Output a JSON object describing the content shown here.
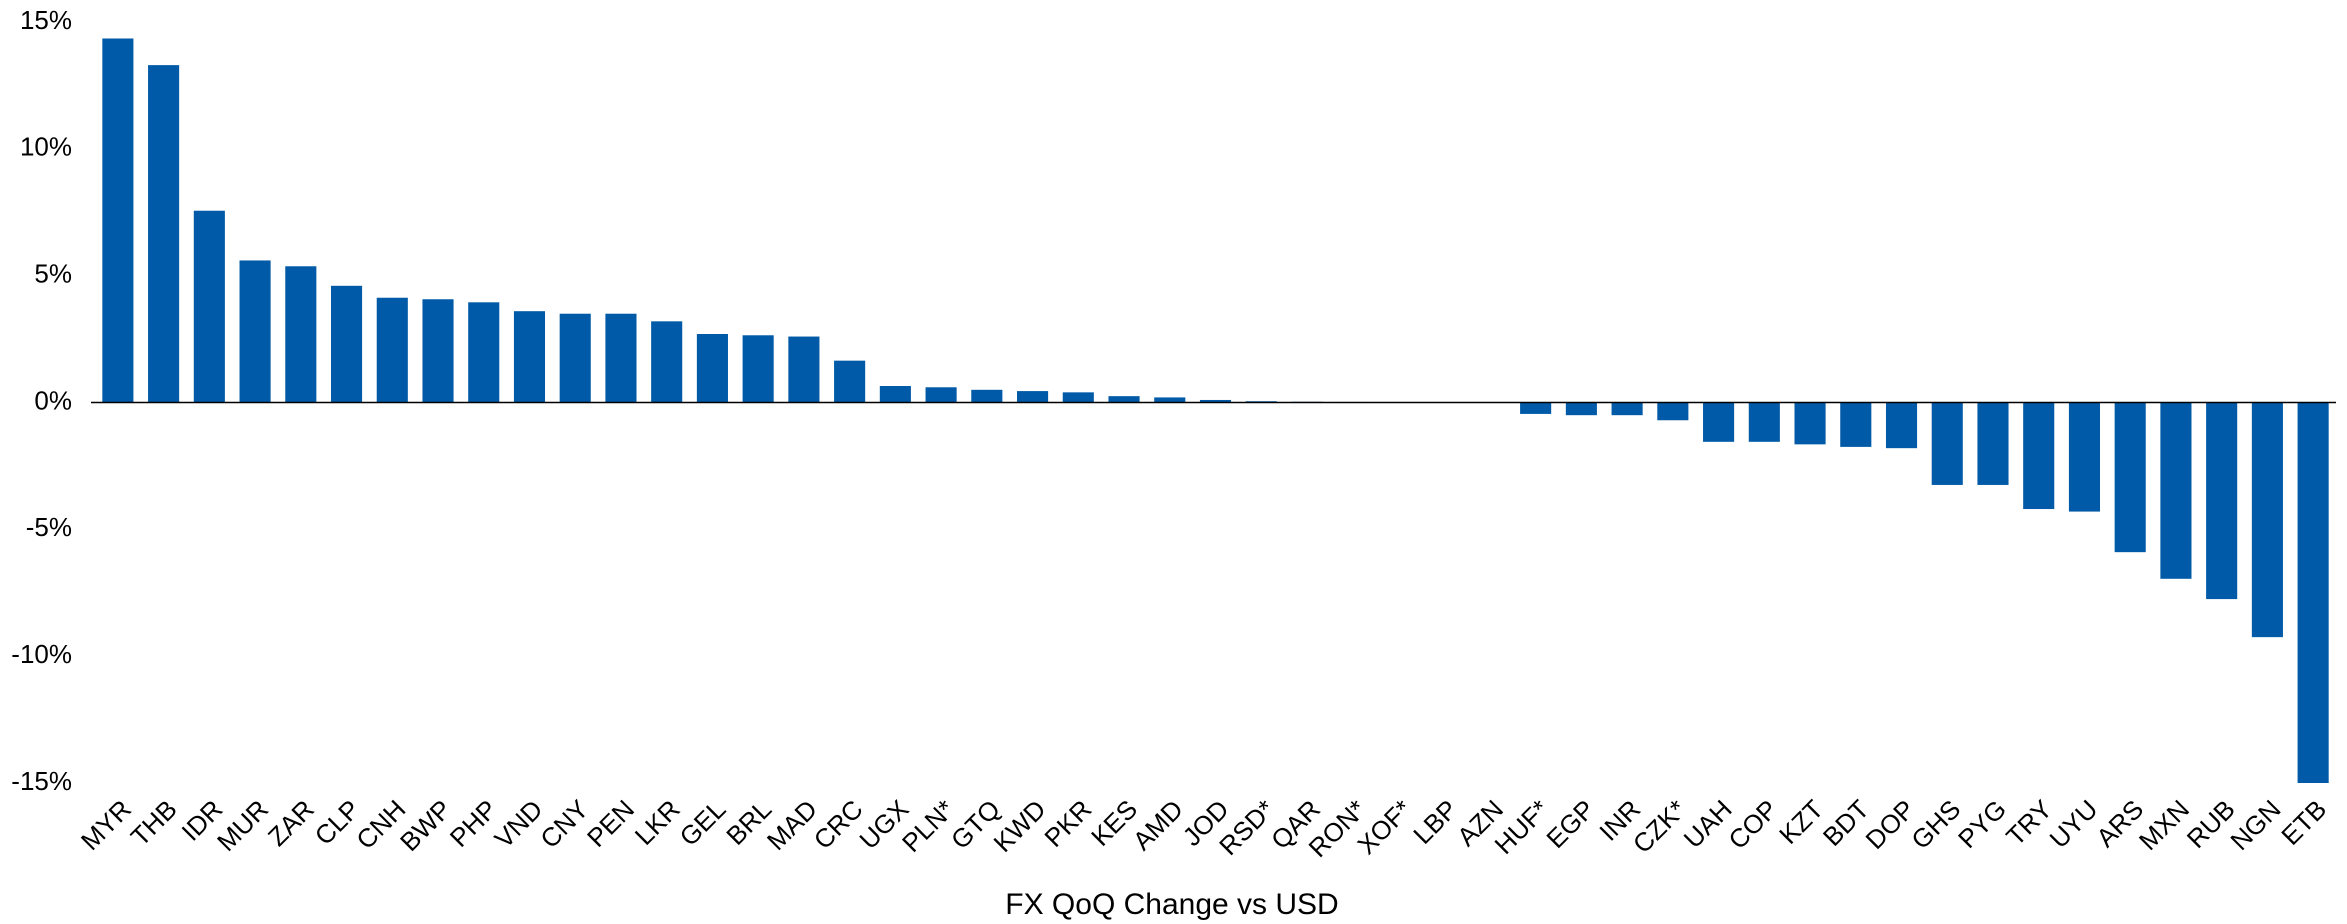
{
  "chart_data": {
    "type": "bar",
    "x_label": "FX QoQ Change vs USD",
    "categories": [
      "MYR",
      "THB",
      "IDR",
      "MUR",
      "ZAR",
      "CLP",
      "CNH",
      "BWP",
      "PHP",
      "VND",
      "CNY",
      "PEN",
      "LKR",
      "GEL",
      "BRL",
      "MAD",
      "CRC",
      "UGX",
      "PLN*",
      "GTQ",
      "KWD",
      "PKR",
      "KES",
      "AMD",
      "JOD",
      "RSD*",
      "QAR",
      "RON*",
      "XOF*",
      "LBP",
      "AZN",
      "HUF*",
      "EGP",
      "INR",
      "CZK*",
      "UAH",
      "COP",
      "KZT",
      "BDT",
      "DOP",
      "GHS",
      "PYG",
      "TRY",
      "UYU",
      "ARS",
      "MXN",
      "RUB",
      "NGN",
      "ETB"
    ],
    "values": [
      14.35,
      13.3,
      7.56,
      5.6,
      5.37,
      4.6,
      4.13,
      4.07,
      3.95,
      3.6,
      3.5,
      3.5,
      3.2,
      2.7,
      2.65,
      2.6,
      1.65,
      0.65,
      0.6,
      0.5,
      0.45,
      0.4,
      0.25,
      0.2,
      0.1,
      0.05,
      0.03,
      0.02,
      0.01,
      0,
      0,
      -0.45,
      -0.5,
      -0.5,
      -0.7,
      -1.55,
      -1.55,
      -1.65,
      -1.75,
      -1.8,
      -3.25,
      -3.25,
      -4.2,
      -4.3,
      -5.9,
      -6.95,
      -7.75,
      -9.25,
      -15
    ],
    "color": "#005aa7",
    "ylim": [
      -15,
      15
    ],
    "yticks": [
      {
        "value": -15,
        "label": "-15%"
      },
      {
        "value": -10,
        "label": "-10%"
      },
      {
        "value": -5,
        "label": "-5%"
      },
      {
        "value": 0,
        "label": "0%"
      },
      {
        "value": 5,
        "label": "5%"
      },
      {
        "value": 10,
        "label": "10%"
      },
      {
        "value": 15,
        "label": "15%"
      }
    ],
    "grid": false
  }
}
